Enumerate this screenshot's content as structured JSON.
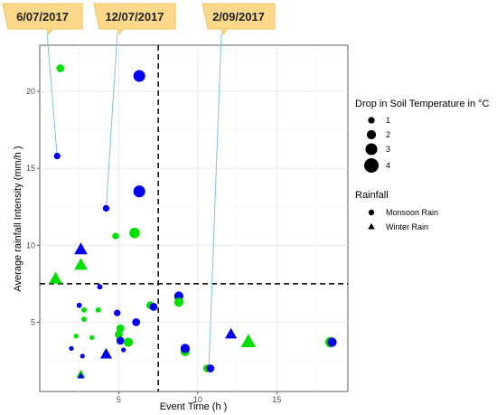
{
  "chart_data": {
    "type": "scatter",
    "title": "",
    "xlabel": "Event Time (h )",
    "ylabel": "Average rainfall Intensity (mm/h )",
    "xlim": [
      0,
      19.5
    ],
    "ylim": [
      0.5,
      23
    ],
    "x_ticks": [
      "5",
      "10",
      "15"
    ],
    "y_ticks": [
      "5",
      "10",
      "15",
      "20"
    ],
    "grid": true,
    "colors": {
      "blue": "#0000ee",
      "green": "#00e000",
      "callout_fill": "#fcd98a",
      "leader_line": "#7ec3e6"
    },
    "reference_lines": {
      "vertical_x": 7.5,
      "horizontal_y": 7.5,
      "style": "dashed"
    },
    "size_legend": {
      "title": "Drop in Soil Temperature in °C",
      "labels": [
        "1",
        "2",
        "3",
        "4"
      ],
      "values": [
        1,
        2,
        3,
        4
      ]
    },
    "shape_legend": {
      "title": "Rainfall",
      "items": [
        {
          "label": "Monsoon Rain",
          "shape": "circle"
        },
        {
          "label": "Winter Rain",
          "shape": "triangle"
        }
      ]
    },
    "legend_position": "right",
    "annotations": [
      {
        "text": "6/07/2017",
        "target": [
          1.1,
          15.8
        ]
      },
      {
        "text": "12/07/2017",
        "target": [
          4.2,
          12.4
        ]
      },
      {
        "text": "2/09/2017",
        "target": [
          10.7,
          2.0
        ]
      }
    ],
    "points": [
      {
        "x": 1.1,
        "y": 15.8,
        "color": "blue",
        "shape": "circle",
        "size": 1
      },
      {
        "x": 1.3,
        "y": 21.5,
        "color": "green",
        "shape": "circle",
        "size": 1.5
      },
      {
        "x": 6.3,
        "y": 21.0,
        "color": "blue",
        "shape": "circle",
        "size": 3
      },
      {
        "x": 6.3,
        "y": 13.5,
        "color": "blue",
        "shape": "circle",
        "size": 3
      },
      {
        "x": 4.2,
        "y": 12.4,
        "color": "blue",
        "shape": "circle",
        "size": 1
      },
      {
        "x": 4.8,
        "y": 10.6,
        "color": "green",
        "shape": "circle",
        "size": 1
      },
      {
        "x": 6.0,
        "y": 10.8,
        "color": "green",
        "shape": "circle",
        "size": 2.5
      },
      {
        "x": 2.6,
        "y": 9.7,
        "color": "blue",
        "shape": "triangle",
        "size": 3
      },
      {
        "x": 2.6,
        "y": 8.7,
        "color": "green",
        "shape": "triangle",
        "size": 3
      },
      {
        "x": 1.0,
        "y": 7.8,
        "color": "green",
        "shape": "triangle",
        "size": 3
      },
      {
        "x": 3.8,
        "y": 7.3,
        "color": "blue",
        "shape": "circle",
        "size": 0.5
      },
      {
        "x": 2.5,
        "y": 6.1,
        "color": "blue",
        "shape": "circle",
        "size": 0.5
      },
      {
        "x": 2.8,
        "y": 5.8,
        "color": "green",
        "shape": "circle",
        "size": 0.5
      },
      {
        "x": 3.7,
        "y": 5.8,
        "color": "green",
        "shape": "circle",
        "size": 0.5
      },
      {
        "x": 2.8,
        "y": 5.2,
        "color": "green",
        "shape": "circle",
        "size": 0.5
      },
      {
        "x": 4.9,
        "y": 5.6,
        "color": "blue",
        "shape": "circle",
        "size": 1
      },
      {
        "x": 6.1,
        "y": 5.0,
        "color": "blue",
        "shape": "circle",
        "size": 1.5
      },
      {
        "x": 7.0,
        "y": 6.1,
        "color": "green",
        "shape": "circle",
        "size": 1.5
      },
      {
        "x": 7.2,
        "y": 6.0,
        "color": "blue",
        "shape": "circle",
        "size": 1.5
      },
      {
        "x": 5.1,
        "y": 4.6,
        "color": "green",
        "shape": "circle",
        "size": 1.5
      },
      {
        "x": 5.0,
        "y": 4.2,
        "color": "green",
        "shape": "circle",
        "size": 1.5
      },
      {
        "x": 2.3,
        "y": 4.1,
        "color": "green",
        "shape": "circle",
        "size": 0.3
      },
      {
        "x": 3.3,
        "y": 4.0,
        "color": "green",
        "shape": "circle",
        "size": 0.3
      },
      {
        "x": 5.1,
        "y": 3.8,
        "color": "blue",
        "shape": "circle",
        "size": 1.5
      },
      {
        "x": 5.6,
        "y": 3.7,
        "color": "green",
        "shape": "circle",
        "size": 2
      },
      {
        "x": 2.0,
        "y": 3.3,
        "color": "blue",
        "shape": "circle",
        "size": 0.3
      },
      {
        "x": 5.3,
        "y": 3.2,
        "color": "blue",
        "shape": "circle",
        "size": 0.3
      },
      {
        "x": 2.7,
        "y": 2.8,
        "color": "blue",
        "shape": "circle",
        "size": 0.3
      },
      {
        "x": 4.2,
        "y": 2.9,
        "color": "blue",
        "shape": "triangle",
        "size": 2.5
      },
      {
        "x": 8.8,
        "y": 6.7,
        "color": "blue",
        "shape": "circle",
        "size": 2
      },
      {
        "x": 8.8,
        "y": 6.3,
        "color": "green",
        "shape": "circle",
        "size": 2
      },
      {
        "x": 9.2,
        "y": 3.1,
        "color": "green",
        "shape": "circle",
        "size": 2
      },
      {
        "x": 9.2,
        "y": 3.3,
        "color": "blue",
        "shape": "circle",
        "size": 2
      },
      {
        "x": 10.6,
        "y": 2.0,
        "color": "green",
        "shape": "circle",
        "size": 1.5
      },
      {
        "x": 10.8,
        "y": 2.0,
        "color": "blue",
        "shape": "circle",
        "size": 1.5
      },
      {
        "x": 12.1,
        "y": 4.2,
        "color": "blue",
        "shape": "triangle",
        "size": 2.5
      },
      {
        "x": 13.2,
        "y": 3.7,
        "color": "green",
        "shape": "triangle",
        "size": 3.5
      },
      {
        "x": 18.4,
        "y": 3.7,
        "color": "green",
        "shape": "circle",
        "size": 2.5
      },
      {
        "x": 18.5,
        "y": 3.7,
        "color": "blue",
        "shape": "circle",
        "size": 2
      },
      {
        "x": 2.6,
        "y": 1.6,
        "color": "green",
        "shape": "triangle",
        "size": 1.5
      },
      {
        "x": 2.6,
        "y": 1.5,
        "color": "blue",
        "shape": "triangle",
        "size": 0.8
      }
    ]
  }
}
